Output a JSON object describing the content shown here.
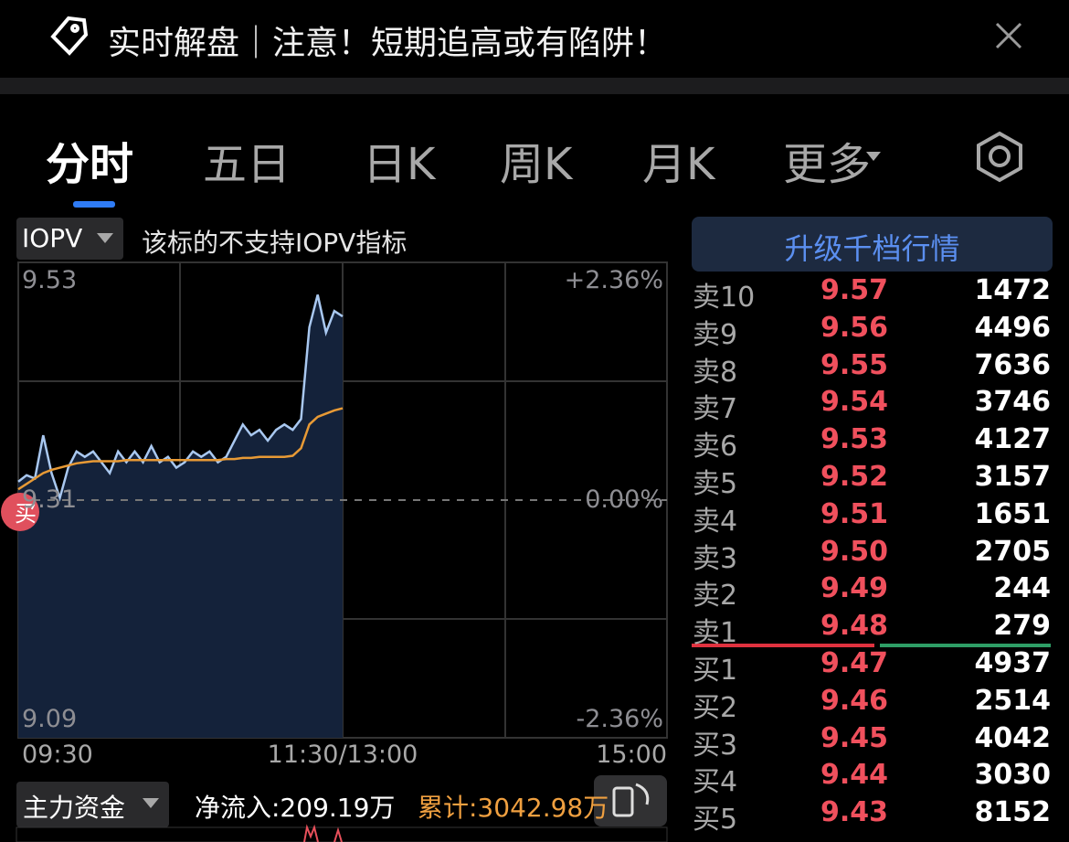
{
  "banner": {
    "text": "实时解盘｜注意！短期追高或有陷阱！"
  },
  "tabs": [
    "分时",
    "五日",
    "日K",
    "周K",
    "月K",
    "更多"
  ],
  "indicator": {
    "selector": "IOPV",
    "note": "该标的不支持IOPV指标"
  },
  "intraday": {
    "ylim": [
      9.09,
      9.53
    ],
    "yticks": [
      9.53,
      9.31,
      9.09
    ],
    "pct_ticks": [
      {
        "value": 9.53,
        "label": "+2.36%"
      },
      {
        "value": 9.31,
        "label": "0.00%"
      },
      {
        "value": 9.09,
        "label": "-2.36%"
      }
    ],
    "time_labels": [
      "09:30",
      "11:30/13:00",
      "15:00"
    ],
    "badge": "买",
    "price": [
      9.327,
      9.333,
      9.33,
      9.37,
      9.335,
      9.312,
      9.34,
      9.355,
      9.35,
      9.355,
      9.345,
      9.335,
      9.355,
      9.345,
      9.355,
      9.345,
      9.36,
      9.345,
      9.35,
      9.34,
      9.345,
      9.355,
      9.35,
      9.355,
      9.345,
      9.35,
      9.365,
      9.38,
      9.37,
      9.375,
      9.365,
      9.375,
      9.38,
      9.375,
      9.385,
      9.47,
      9.5,
      9.465,
      9.485,
      9.48
    ],
    "avg": [
      9.32,
      9.325,
      9.33,
      9.335,
      9.338,
      9.34,
      9.342,
      9.344,
      9.345,
      9.346,
      9.346,
      9.346,
      9.346,
      9.347,
      9.347,
      9.347,
      9.347,
      9.347,
      9.347,
      9.347,
      9.347,
      9.347,
      9.347,
      9.347,
      9.347,
      9.348,
      9.348,
      9.349,
      9.349,
      9.35,
      9.35,
      9.35,
      9.35,
      9.351,
      9.358,
      9.38,
      9.387,
      9.39,
      9.393,
      9.395
    ]
  },
  "upgrade_button": "升级千档行情",
  "order_book": [
    [
      "卖10",
      "9.57",
      "1472"
    ],
    [
      "卖9",
      "9.56",
      "4496"
    ],
    [
      "卖8",
      "9.55",
      "7636"
    ],
    [
      "卖7",
      "9.54",
      "3746"
    ],
    [
      "卖6",
      "9.53",
      "4127"
    ],
    [
      "卖5",
      "9.52",
      "3157"
    ],
    [
      "卖4",
      "9.51",
      "1651"
    ],
    [
      "卖3",
      "9.50",
      "2705"
    ],
    [
      "卖2",
      "9.49",
      "244"
    ],
    [
      "卖1",
      "9.48",
      "279"
    ],
    [
      "买1",
      "9.47",
      "4937"
    ],
    [
      "买2",
      "9.46",
      "2514"
    ],
    [
      "买3",
      "9.45",
      "4042"
    ],
    [
      "买4",
      "9.44",
      "3030"
    ],
    [
      "买5",
      "9.43",
      "8152"
    ]
  ],
  "fund_flow": {
    "selector": "主力资金",
    "net_inflow": "净流入:209.19万",
    "cumulative": "累计:3042.98万"
  }
}
